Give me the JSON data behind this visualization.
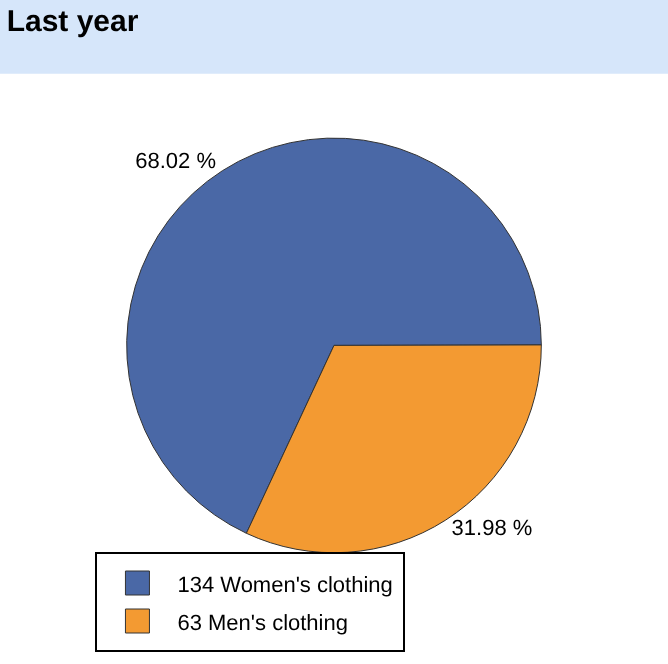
{
  "chart_data": {
    "type": "pie",
    "title": "Last year",
    "categories": [
      "134 Women's clothing",
      "63 Men's clothing"
    ],
    "values": [
      68.02,
      31.98
    ],
    "colors": [
      "#4a68a6",
      "#f39a32"
    ],
    "value_labels": [
      "68.02 %",
      "31.98 %"
    ],
    "legend": "bottom left"
  }
}
